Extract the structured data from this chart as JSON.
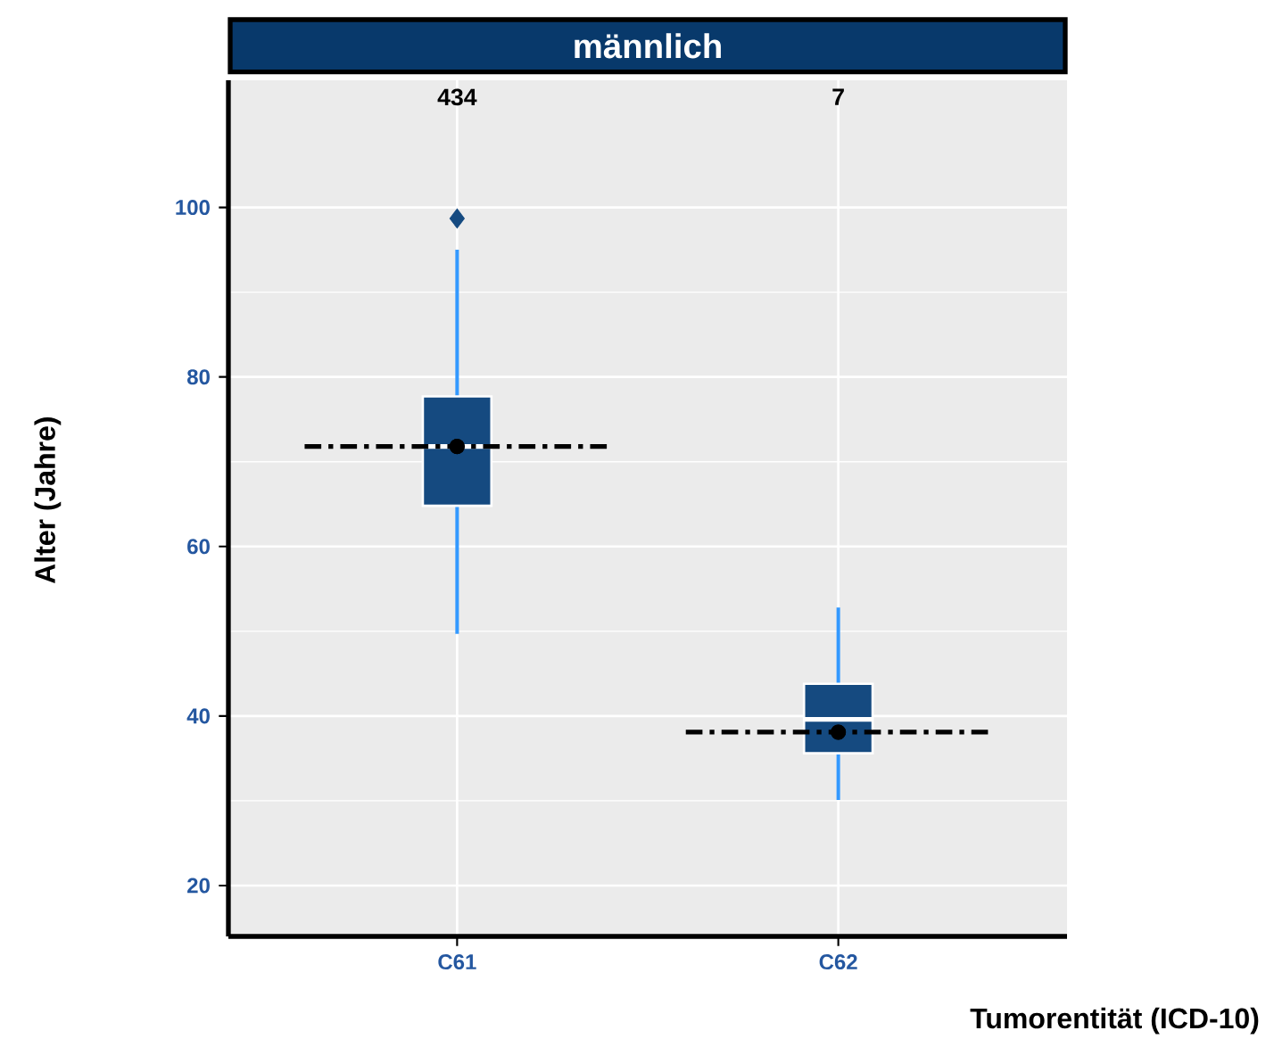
{
  "chart_data": {
    "type": "box",
    "title": "männlich",
    "xlabel": "Tumorentität (ICD-10)",
    "ylabel": "Alter (Jahre)",
    "categories": [
      "C61",
      "C62"
    ],
    "series": [
      {
        "color": "#154a80",
        "boxes": [
          {
            "low": 49.7,
            "q1": 64.8,
            "median": 71.8,
            "q3": 77.7,
            "high": 95,
            "mean": 71.8,
            "outliers": [
              98.7
            ]
          },
          {
            "low": 30.1,
            "q1": 35.6,
            "median": 39.6,
            "q3": 43.8,
            "high": 52.8,
            "mean": 38.1
          }
        ]
      }
    ],
    "annotations": [
      "434",
      "7"
    ],
    "ref_lines": [
      {
        "axis": "y",
        "value": 71.8,
        "color": "#000000",
        "line_style": "dashed"
      },
      {
        "axis": "y",
        "value": 38.1,
        "color": "#000000",
        "line_style": "dashed"
      }
    ],
    "ylim": [
      14,
      115
    ],
    "yticks": [
      20,
      40,
      60,
      80,
      100
    ],
    "grid": true
  }
}
